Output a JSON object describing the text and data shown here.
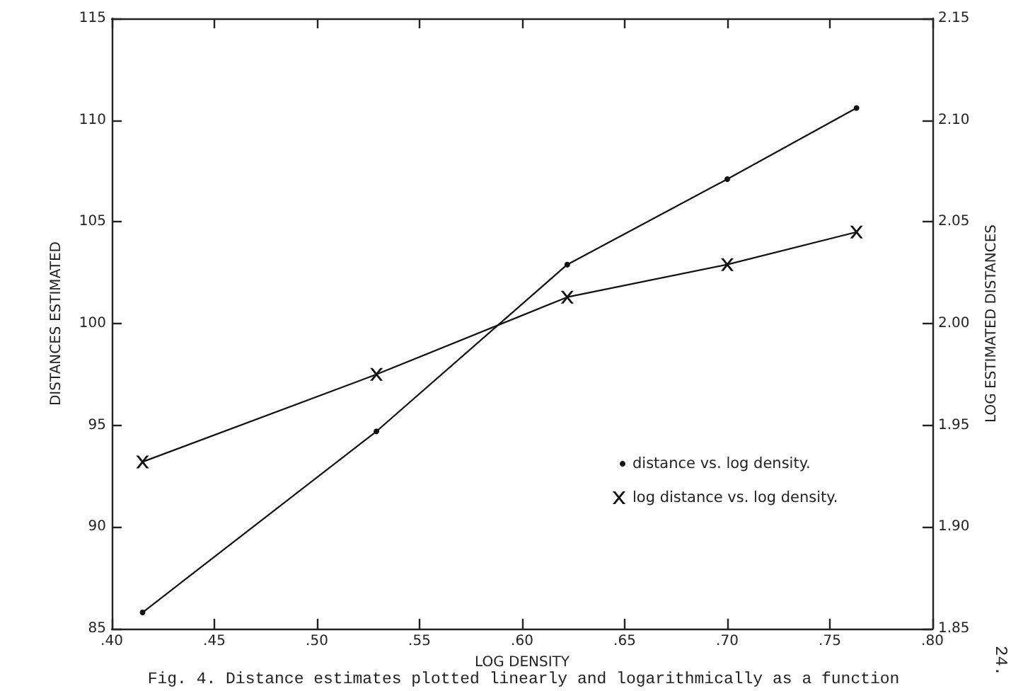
{
  "chart_data": {
    "type": "line",
    "xlabel": "LOG DENSITY",
    "ylabel": "DISTANCES ESTIMATED",
    "y2label": "LOG ESTIMATED DISTANCES",
    "x": [
      0.415,
      0.529,
      0.622,
      0.7,
      0.763
    ],
    "series": [
      {
        "name": "distance vs. log density.",
        "color": "#111111",
        "marker": "circle",
        "values": [
          85.8,
          94.7,
          102.9,
          107.1,
          110.6
        ]
      },
      {
        "name": "log distance vs. log density.",
        "color": "#111111",
        "marker": "cross",
        "axis": "y2",
        "values": [
          1.932,
          1.975,
          2.013,
          2.029,
          2.045
        ]
      }
    ],
    "xlim": [
      0.4,
      0.8
    ],
    "xticks": [
      {
        "value": 0.4,
        "label": ".40"
      },
      {
        "value": 0.45,
        "label": ".45"
      },
      {
        "value": 0.5,
        "label": ".50"
      },
      {
        "value": 0.55,
        "label": ".55"
      },
      {
        "value": 0.6,
        "label": ".60"
      },
      {
        "value": 0.65,
        "label": ".65"
      },
      {
        "value": 0.7,
        "label": ".70"
      },
      {
        "value": 0.75,
        "label": ".75"
      },
      {
        "value": 0.8,
        "label": ".80"
      }
    ],
    "ylim": [
      85,
      115
    ],
    "yticks": [
      85,
      90,
      95,
      100,
      105,
      110,
      115
    ],
    "y2lim": [
      1.85,
      2.15
    ],
    "y2ticks": [
      {
        "value": 1.85,
        "label": "1.85"
      },
      {
        "value": 1.9,
        "label": "1.90"
      },
      {
        "value": 1.95,
        "label": "1.95"
      },
      {
        "value": 2.0,
        "label": "2.00"
      },
      {
        "value": 2.05,
        "label": "2.05"
      },
      {
        "value": 2.1,
        "label": "2.10"
      },
      {
        "value": 2.15,
        "label": "2.15"
      }
    ],
    "legend": "bottom right",
    "annotations": [
      "Fig. 4. Distance estimates plotted linearly and logarithmically as a function",
      "24."
    ]
  }
}
